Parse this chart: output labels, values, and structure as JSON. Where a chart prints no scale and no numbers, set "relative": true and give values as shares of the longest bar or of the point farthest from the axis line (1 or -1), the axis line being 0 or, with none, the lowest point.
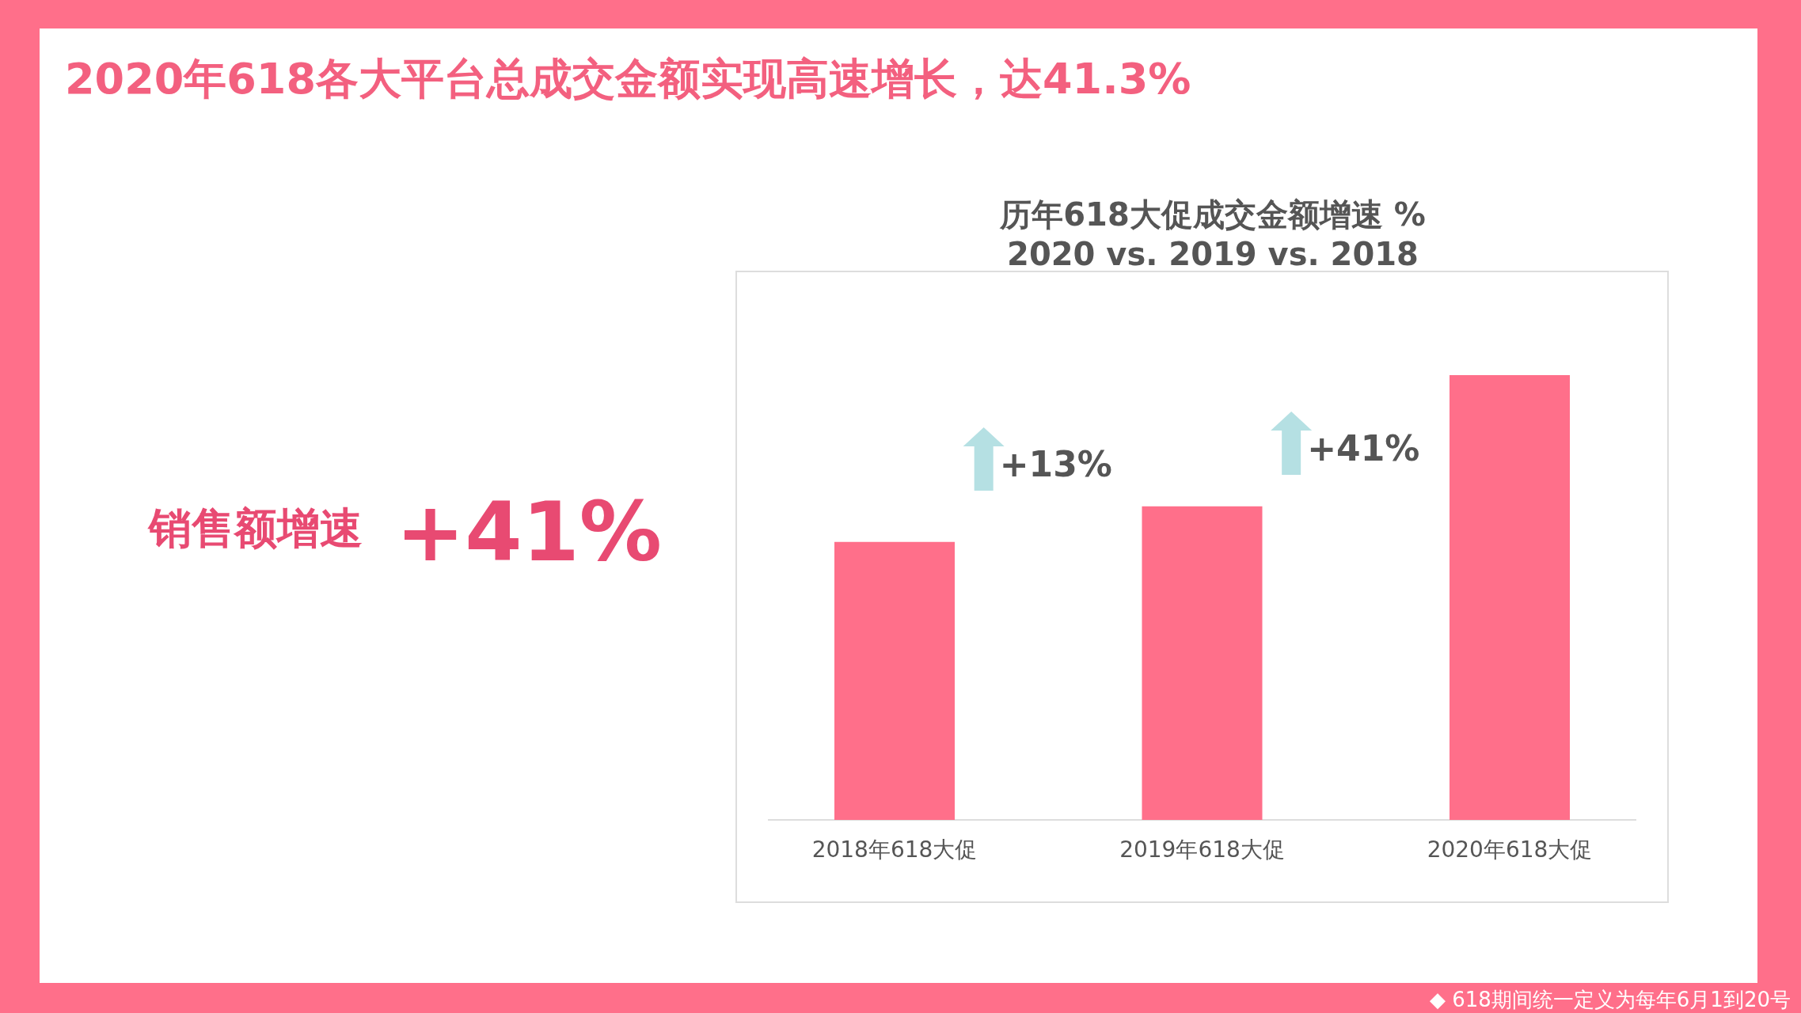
{
  "chart_data": {
    "type": "bar",
    "title": "2020年618各大平台总成交金额实现高速增长，达41.3%",
    "subtitle": "历年618大促成交金额增速 %\n2020 vs. 2019 vs. 2018",
    "categories": [
      "2018年618大促",
      "2019年618大促",
      "2020年618大促"
    ],
    "values": [
      0.625,
      0.705,
      1
    ],
    "color": "#ff6f8a",
    "relative": true,
    "annotations": [
      "+13%",
      "+41%",
      "销售额增速",
      "+41%",
      "◆ 618期间统一定义为每年6月1到20号"
    ]
  }
}
